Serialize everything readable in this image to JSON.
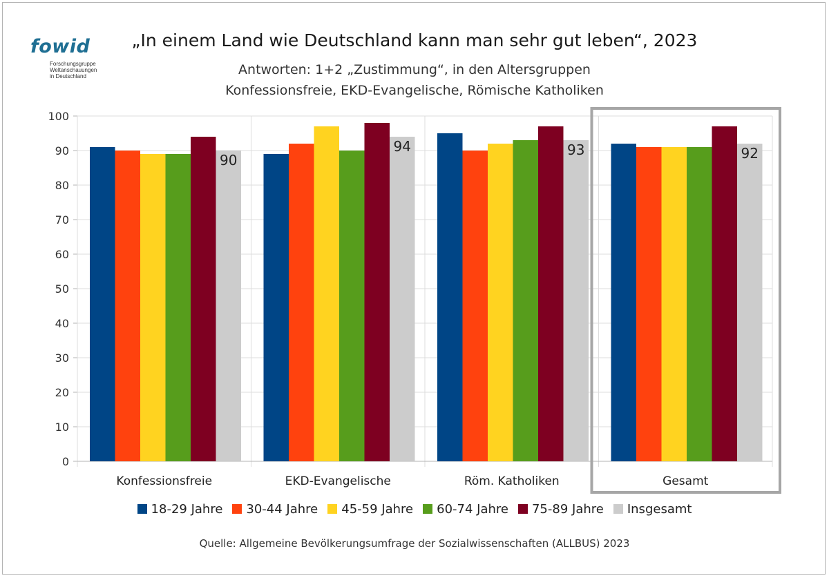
{
  "logo": {
    "word": "fowid",
    "lines": [
      "Forschungsgruppe",
      "Weltanschauungen",
      "in Deutschland"
    ]
  },
  "chart_data": {
    "type": "bar",
    "title": "„In einem Land wie Deutschland kann man sehr gut leben“, 2023",
    "subtitle": [
      "Antworten: 1+2 „Zustimmung“, in den Altersgruppen",
      "Konfessionsfreie, EKD-Evangelische, Römische Katholiken"
    ],
    "categories": [
      "Konfessionsfreie",
      "EKD-Evangelische",
      "Röm. Katholiken",
      "Gesamt"
    ],
    "series": [
      {
        "name": "18-29 Jahre",
        "color": "#004586",
        "values": [
          91,
          89,
          95,
          92
        ]
      },
      {
        "name": "30-44 Jahre",
        "color": "#ff420e",
        "values": [
          90,
          92,
          90,
          91
        ]
      },
      {
        "name": "45-59 Jahre",
        "color": "#ffd320",
        "values": [
          89,
          97,
          92,
          91
        ]
      },
      {
        "name": "60-74 Jahre",
        "color": "#579d1c",
        "values": [
          89,
          90,
          93,
          91
        ]
      },
      {
        "name": "75-89 Jahre",
        "color": "#7e0021",
        "values": [
          94,
          98,
          97,
          97
        ]
      },
      {
        "name": "Insgesamt",
        "color": "#cccccc",
        "values": [
          90,
          94,
          93,
          92
        ]
      }
    ],
    "data_labels": [
      "90",
      "94",
      "93",
      "92"
    ],
    "ylim": [
      0,
      100
    ],
    "yticks": [
      "0",
      "10",
      "20",
      "30",
      "40",
      "50",
      "60",
      "70",
      "80",
      "90",
      "100"
    ],
    "grid": true,
    "legend_position": "bottom",
    "highlighted_category": "Gesamt"
  },
  "source": "Quelle: Allgemeine Bevölkerungsumfrage der Sozialwissenschaften (ALLBUS) 2023"
}
